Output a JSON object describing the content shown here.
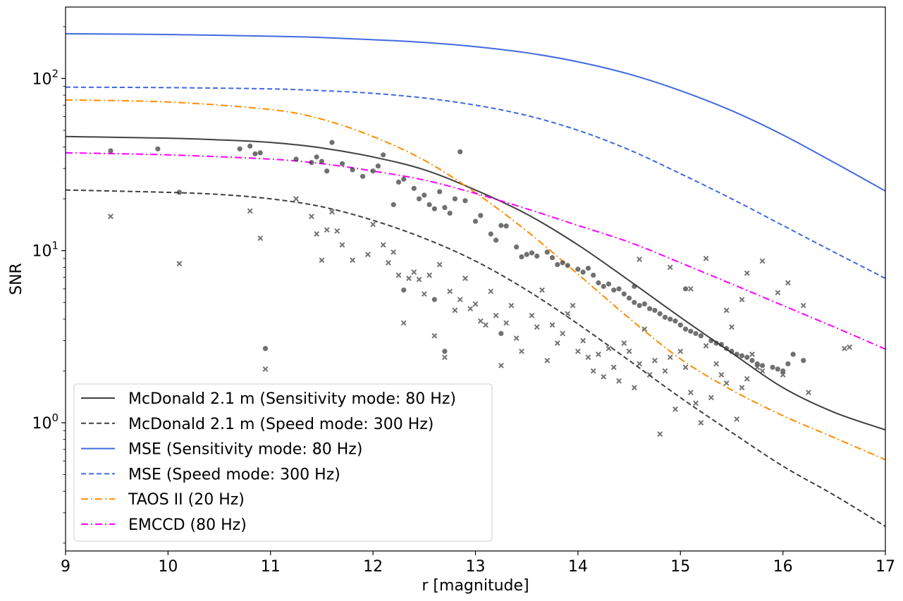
{
  "chart_data": {
    "type": "line",
    "xlabel": "r [magnitude]",
    "ylabel": "SNR",
    "xlim": [
      9,
      17
    ],
    "ylim": [
      0.18,
      260
    ],
    "yscale": "log",
    "grid": false,
    "legend_position": "lower-left",
    "x_ticks": [
      9,
      10,
      11,
      12,
      13,
      14,
      15,
      16,
      17
    ],
    "x_tick_labels": [
      "9",
      "10",
      "11",
      "12",
      "13",
      "14",
      "15",
      "16",
      "17"
    ],
    "y_ticks": [
      1,
      10,
      100
    ],
    "y_tick_labels": [
      {
        "base": "10",
        "exp": "0"
      },
      {
        "base": "10",
        "exp": "1"
      },
      {
        "base": "10",
        "exp": "2"
      }
    ],
    "series": [
      {
        "name": "McDonald 2.1 m (Sensitivity mode: 80 Hz)",
        "color": "#404040",
        "dash": "solid",
        "x": [
          9,
          10,
          10.5,
          11,
          11.5,
          12,
          12.5,
          13,
          13.5,
          14,
          14.5,
          15,
          15.5,
          16,
          16.5,
          17
        ],
        "y": [
          46,
          45,
          44,
          42.5,
          39.5,
          35,
          29.5,
          22.5,
          16.3,
          10.8,
          6.7,
          4.1,
          2.55,
          1.6,
          1.15,
          0.91
        ]
      },
      {
        "name": "McDonald 2.1 m (Speed mode: 300 Hz)",
        "color": "#404040",
        "dash": "dashed",
        "x": [
          9,
          10,
          10.5,
          11,
          11.5,
          12,
          12.5,
          13,
          13.5,
          14,
          14.5,
          15,
          15.5,
          16,
          16.5,
          17
        ],
        "y": [
          22.5,
          21.8,
          21.2,
          20,
          18,
          15,
          11.8,
          8.7,
          5.9,
          3.75,
          2.3,
          1.4,
          0.88,
          0.56,
          0.38,
          0.25
        ]
      },
      {
        "name": "MSE (Sensitivity mode: 80 Hz)",
        "color": "#4169e1",
        "dash": "solid",
        "x": [
          9,
          10,
          11,
          11.5,
          12,
          12.5,
          13,
          13.5,
          14,
          14.5,
          15,
          15.5,
          16,
          16.5,
          17
        ],
        "y": [
          182,
          180,
          176,
          173,
          168,
          162,
          153,
          141,
          125,
          106,
          85,
          65,
          47,
          32.5,
          22.2
        ]
      },
      {
        "name": "MSE (Speed mode: 300 Hz)",
        "color": "#4169e1",
        "dash": "dashed",
        "x": [
          9,
          10,
          11,
          11.5,
          12,
          12.5,
          13,
          13.5,
          14,
          14.5,
          15,
          15.5,
          16,
          16.5,
          17
        ],
        "y": [
          89,
          88.5,
          87,
          85,
          82,
          77,
          70,
          61,
          50,
          38.5,
          28,
          20,
          14,
          9.8,
          6.9
        ]
      },
      {
        "name": "TAOS II (20 Hz)",
        "color": "#ff8c00",
        "dash": "dashdot",
        "x": [
          9,
          10,
          11,
          11.5,
          12,
          12.5,
          13,
          13.5,
          14,
          14.5,
          15,
          15.5,
          16,
          16.5,
          17
        ],
        "y": [
          75,
          73,
          66,
          58,
          46,
          33.5,
          21.7,
          13,
          7.3,
          4.05,
          2.35,
          1.55,
          1.1,
          0.82,
          0.61
        ]
      },
      {
        "name": "EMCCD (80 Hz)",
        "color": "#ff00ff",
        "dash": "dashdot",
        "x": [
          9,
          10,
          11,
          11.5,
          12,
          12.5,
          13,
          13.5,
          14,
          14.5,
          15,
          15.5,
          16,
          16.5,
          17
        ],
        "y": [
          37,
          36,
          34,
          32,
          29,
          25.7,
          21.5,
          17.5,
          14,
          11.2,
          8.5,
          6.4,
          4.8,
          3.6,
          2.68
        ]
      }
    ],
    "scatter": [
      {
        "marker": "circle",
        "color": "#333333",
        "points": [
          [
            9.44,
            38
          ],
          [
            9.9,
            39
          ],
          [
            10.11,
            21.8
          ],
          [
            10.7,
            39
          ],
          [
            10.8,
            40.5
          ],
          [
            10.85,
            36.5
          ],
          [
            10.9,
            37
          ],
          [
            10.95,
            2.7
          ],
          [
            11.25,
            34
          ],
          [
            11.4,
            32.5
          ],
          [
            11.45,
            35
          ],
          [
            11.5,
            33
          ],
          [
            11.55,
            29
          ],
          [
            11.6,
            42.5
          ],
          [
            11.7,
            32
          ],
          [
            11.8,
            29.5
          ],
          [
            11.9,
            27
          ],
          [
            12,
            29
          ],
          [
            12.05,
            31
          ],
          [
            12.1,
            36
          ],
          [
            12.2,
            18.5
          ],
          [
            12.25,
            25
          ],
          [
            12.3,
            26
          ],
          [
            12.4,
            23
          ],
          [
            12.45,
            20
          ],
          [
            12.5,
            21
          ],
          [
            12.55,
            18.5
          ],
          [
            12.6,
            17.5
          ],
          [
            12.65,
            22
          ],
          [
            12.7,
            17.8
          ],
          [
            12.75,
            16.5
          ],
          [
            12.8,
            20
          ],
          [
            12.85,
            37.5
          ],
          [
            12.9,
            19.5
          ],
          [
            13,
            14.8
          ],
          [
            13.05,
            16
          ],
          [
            13.15,
            12.5
          ],
          [
            13.2,
            11.5
          ],
          [
            13.25,
            14
          ],
          [
            13.3,
            13.9
          ],
          [
            13.4,
            10.5
          ],
          [
            13.45,
            9.2
          ],
          [
            13.5,
            9.5
          ],
          [
            13.55,
            9.7
          ],
          [
            13.6,
            9.3
          ],
          [
            13.7,
            9.8
          ],
          [
            13.75,
            9.1
          ],
          [
            13.8,
            8.3
          ],
          [
            13.85,
            8.5
          ],
          [
            13.9,
            8.2
          ],
          [
            14,
            7.8
          ],
          [
            14.05,
            7.5
          ],
          [
            14.1,
            7.9
          ],
          [
            14.15,
            7.2
          ],
          [
            14.2,
            6.5
          ],
          [
            14.25,
            6.2
          ],
          [
            14.3,
            6.4
          ],
          [
            14.35,
            5.9
          ],
          [
            14.4,
            6.0
          ],
          [
            14.45,
            5.6
          ],
          [
            14.5,
            5.3
          ],
          [
            14.55,
            5.0
          ],
          [
            14.6,
            4.8
          ],
          [
            14.65,
            4.9
          ],
          [
            14.7,
            4.6
          ],
          [
            14.75,
            4.5
          ],
          [
            14.8,
            4.3
          ],
          [
            14.85,
            4.1
          ],
          [
            14.9,
            4.0
          ],
          [
            14.95,
            3.9
          ],
          [
            15,
            3.7
          ],
          [
            15.05,
            3.5
          ],
          [
            15.1,
            3.4
          ],
          [
            15.15,
            3.3
          ],
          [
            15.2,
            3.2
          ],
          [
            15.3,
            3.0
          ],
          [
            15.35,
            2.9
          ],
          [
            15.4,
            2.85
          ],
          [
            15.45,
            2.7
          ],
          [
            15.5,
            2.6
          ],
          [
            15.55,
            2.5
          ],
          [
            15.6,
            2.45
          ],
          [
            15.65,
            2.4
          ],
          [
            15.7,
            2.3
          ],
          [
            15.75,
            2.2
          ],
          [
            15.8,
            2.15
          ],
          [
            15.9,
            2.1
          ],
          [
            15.95,
            2.05
          ],
          [
            16,
            2.0
          ],
          [
            16.05,
            2.2
          ],
          [
            16.1,
            2.5
          ],
          [
            16.2,
            2.3
          ],
          [
            12.7,
            2.6
          ],
          [
            13.25,
            3.3
          ],
          [
            12.3,
            5.9
          ],
          [
            12.6,
            5.2
          ],
          [
            14.55,
            6.2
          ],
          [
            15.05,
            6.0
          ]
        ]
      },
      {
        "marker": "x",
        "color": "#444444",
        "points": [
          [
            9.44,
            15.8
          ],
          [
            10.11,
            8.4
          ],
          [
            10.8,
            17
          ],
          [
            10.9,
            11.8
          ],
          [
            10.95,
            2.05
          ],
          [
            11.25,
            20
          ],
          [
            11.4,
            15.8
          ],
          [
            11.45,
            12.5
          ],
          [
            11.5,
            8.8
          ],
          [
            11.55,
            13.2
          ],
          [
            11.6,
            16.8
          ],
          [
            11.65,
            13
          ],
          [
            11.7,
            10.8
          ],
          [
            11.8,
            8.8
          ],
          [
            11.95,
            9.5
          ],
          [
            12,
            14.2
          ],
          [
            12.1,
            10.8
          ],
          [
            12.15,
            8.5
          ],
          [
            12.2,
            9.8
          ],
          [
            12.25,
            7.2
          ],
          [
            12.3,
            3.8
          ],
          [
            12.35,
            6.9
          ],
          [
            12.4,
            7.5
          ],
          [
            12.45,
            6.8
          ],
          [
            12.5,
            5.6
          ],
          [
            12.55,
            7.2
          ],
          [
            12.6,
            3.2
          ],
          [
            12.65,
            8.3
          ],
          [
            12.7,
            2.4
          ],
          [
            12.75,
            5.8
          ],
          [
            12.8,
            4.5
          ],
          [
            12.85,
            5.2
          ],
          [
            12.9,
            6.9
          ],
          [
            12.95,
            4.6
          ],
          [
            13,
            4.9
          ],
          [
            13.05,
            3.9
          ],
          [
            13.1,
            3.7
          ],
          [
            13.15,
            5.8
          ],
          [
            13.2,
            4.2
          ],
          [
            13.25,
            2.15
          ],
          [
            13.3,
            3.8
          ],
          [
            13.35,
            4.8
          ],
          [
            13.4,
            3.1
          ],
          [
            13.45,
            2.6
          ],
          [
            13.55,
            4.2
          ],
          [
            13.6,
            3.6
          ],
          [
            13.65,
            5.9
          ],
          [
            13.7,
            2.3
          ],
          [
            13.75,
            3.7
          ],
          [
            13.8,
            2.9
          ],
          [
            13.85,
            3.3
          ],
          [
            13.9,
            4.3
          ],
          [
            14,
            2.6
          ],
          [
            14.05,
            3.0
          ],
          [
            14.1,
            2.4
          ],
          [
            14.15,
            2.0
          ],
          [
            14.2,
            2.5
          ],
          [
            14.25,
            1.85
          ],
          [
            14.3,
            2.7
          ],
          [
            14.35,
            2.1
          ],
          [
            14.4,
            1.75
          ],
          [
            14.45,
            2.9
          ],
          [
            14.5,
            2.6
          ],
          [
            14.55,
            1.6
          ],
          [
            14.6,
            2.2
          ],
          [
            14.65,
            3.5
          ],
          [
            14.7,
            1.9
          ],
          [
            14.75,
            2.3
          ],
          [
            14.8,
            0.86
          ],
          [
            14.85,
            2.0
          ],
          [
            14.9,
            2.4
          ],
          [
            14.95,
            1.2
          ],
          [
            15,
            2.6
          ],
          [
            15.05,
            2.1
          ],
          [
            15.1,
            1.5
          ],
          [
            15.15,
            1.3
          ],
          [
            15.2,
            1.0
          ],
          [
            15.25,
            2.8
          ],
          [
            15.3,
            1.4
          ],
          [
            15.35,
            2.2
          ],
          [
            15.4,
            1.9
          ],
          [
            15.45,
            1.7
          ],
          [
            15.5,
            3.6
          ],
          [
            15.55,
            1.05
          ],
          [
            15.6,
            1.6
          ],
          [
            15.65,
            1.8
          ],
          [
            15.7,
            2.5
          ],
          [
            15.75,
            2.1
          ],
          [
            15.8,
            2.0
          ],
          [
            16,
            1.9
          ],
          [
            16.25,
            1.5
          ],
          [
            16.6,
            2.7
          ],
          [
            16.65,
            2.75
          ],
          [
            16.2,
            4.8
          ],
          [
            16.05,
            6.5
          ],
          [
            15.8,
            8.7
          ],
          [
            15.65,
            7.4
          ],
          [
            15.45,
            4.5
          ],
          [
            15.1,
            6.0
          ],
          [
            15.25,
            9.0
          ],
          [
            15.6,
            5.2
          ],
          [
            14.9,
            8.0
          ],
          [
            14.6,
            8.9
          ],
          [
            13.95,
            4.8
          ],
          [
            15.95,
            5.7
          ]
        ]
      }
    ]
  }
}
